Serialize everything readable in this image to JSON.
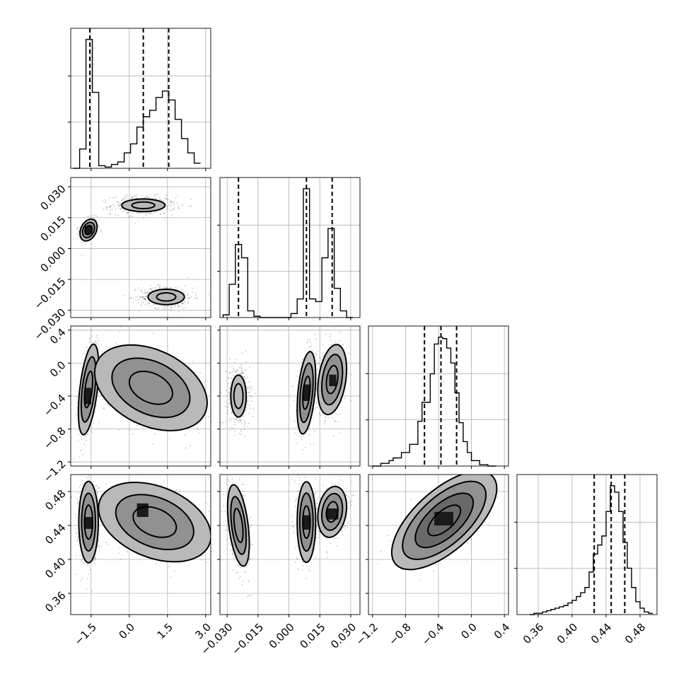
{
  "chart_data": {
    "type": "corner",
    "parameters": [
      {
        "id": "p0",
        "ticks": [
          "−1.5",
          "0.0",
          "1.5",
          "3.0"
        ],
        "tick_values": [
          -1.5,
          0.0,
          1.5,
          3.0
        ],
        "range": [
          -2.3,
          3.2
        ],
        "quantiles": [
          -1.55,
          0.55,
          1.55
        ],
        "histogram": {
          "bin_edges": [
            -2.2,
            -1.95,
            -1.7,
            -1.45,
            -1.2,
            -0.95,
            -0.7,
            -0.45,
            -0.2,
            0.05,
            0.3,
            0.55,
            0.8,
            1.05,
            1.3,
            1.55,
            1.8,
            2.05,
            2.3,
            2.55,
            2.8
          ],
          "counts": [
            0,
            0.15,
            1.0,
            0.59,
            0.02,
            0.01,
            0.03,
            0.05,
            0.12,
            0.19,
            0.32,
            0.4,
            0.45,
            0.55,
            0.6,
            0.53,
            0.38,
            0.23,
            0.12,
            0.04
          ]
        }
      },
      {
        "id": "p1",
        "ticks": [
          "−0.030",
          "−0.015",
          "0.000",
          "0.015",
          "0.030"
        ],
        "tick_values": [
          -0.03,
          -0.015,
          0.0,
          0.015,
          0.03
        ],
        "range": [
          -0.0335,
          0.0345
        ],
        "quantiles": [
          -0.0245,
          0.0085,
          0.021
        ],
        "histogram": {
          "bin_edges": [
            -0.032,
            -0.029,
            -0.026,
            -0.023,
            -0.02,
            -0.017,
            -0.014,
            -0.011,
            -0.008,
            -0.005,
            -0.002,
            0.001,
            0.004,
            0.007,
            0.01,
            0.013,
            0.016,
            0.019,
            0.022,
            0.025,
            0.028,
            0.031
          ],
          "counts": [
            0.02,
            0.25,
            0.55,
            0.45,
            0.05,
            0.01,
            0,
            0,
            0,
            0,
            0,
            0.03,
            0.14,
            0.97,
            0.14,
            0.12,
            0.45,
            0.67,
            0.22,
            0.05,
            0
          ]
        }
      },
      {
        "id": "p2",
        "ticks": [
          "−1.2",
          "−0.8",
          "−0.4",
          "0.0",
          "0.4"
        ],
        "tick_values": [
          -1.2,
          -0.8,
          -0.4,
          0.0,
          0.4
        ],
        "range": [
          -1.25,
          0.45
        ],
        "quantiles": [
          -0.57,
          -0.37,
          -0.18
        ],
        "histogram": {
          "bin_edges": [
            -1.2,
            -1.1,
            -1.0,
            -0.95,
            -0.85,
            -0.75,
            -0.65,
            -0.6,
            -0.5,
            -0.45,
            -0.4,
            -0.35,
            -0.3,
            -0.25,
            -0.2,
            -0.15,
            -0.1,
            -0.05,
            0.0,
            0.1,
            0.2,
            0.3
          ],
          "counts": [
            0,
            0.02,
            0.04,
            0.06,
            0.1,
            0.16,
            0.33,
            0.47,
            0.68,
            0.9,
            0.95,
            0.94,
            0.87,
            0.76,
            0.54,
            0.32,
            0.18,
            0.1,
            0.04,
            0.01,
            0
          ]
        }
      },
      {
        "id": "p3",
        "ticks": [
          "0.36",
          "0.40",
          "0.44",
          "0.48"
        ],
        "tick_values": [
          0.36,
          0.4,
          0.44,
          0.48
        ],
        "range": [
          0.335,
          0.5
        ],
        "quantiles": [
          0.426,
          0.446,
          0.462
        ],
        "histogram": {
          "bin_edges": [
            0.35,
            0.355,
            0.36,
            0.365,
            0.37,
            0.375,
            0.38,
            0.385,
            0.39,
            0.395,
            0.4,
            0.405,
            0.41,
            0.415,
            0.42,
            0.425,
            0.43,
            0.435,
            0.44,
            0.445,
            0.45,
            0.455,
            0.46,
            0.465,
            0.47,
            0.475,
            0.48,
            0.485,
            0.49,
            0.495
          ],
          "counts": [
            0,
            0.01,
            0.01,
            0.02,
            0.03,
            0.04,
            0.05,
            0.06,
            0.07,
            0.09,
            0.11,
            0.14,
            0.17,
            0.21,
            0.33,
            0.47,
            0.54,
            0.61,
            0.8,
            1.0,
            0.95,
            0.8,
            0.56,
            0.36,
            0.21,
            0.1,
            0.05,
            0.02,
            0.01
          ]
        }
      }
    ],
    "pairs": [
      {
        "row": 1,
        "col": 0,
        "modes": [
          {
            "cx": -1.6,
            "cy": 0.009,
            "sx": 0.14,
            "sy": 0.0022,
            "rho": 0.3,
            "levels": [
              1.0,
              1.7,
              2.4
            ],
            "dark": [
              -1.75,
              -1.45,
              0.007,
              0.011
            ]
          },
          {
            "cx": 0.55,
            "cy": 0.021,
            "sx": 0.5,
            "sy": 0.0018,
            "rho": 0.0,
            "levels": [
              0.9,
              1.7
            ]
          },
          {
            "cx": 1.45,
            "cy": -0.0235,
            "sx": 0.42,
            "sy": 0.0022,
            "rho": 0.0,
            "levels": [
              0.9,
              1.7
            ]
          }
        ]
      },
      {
        "row": 2,
        "col": 0,
        "modes": [
          {
            "cx": -1.6,
            "cy": -0.32,
            "sx": 0.16,
            "sy": 0.22,
            "rho": 0.5,
            "levels": [
              1.0,
              1.8,
              2.5
            ],
            "dark": [
              -1.75,
              -1.5,
              -0.5,
              -0.3
            ]
          },
          {
            "cx": 0.85,
            "cy": -0.3,
            "sx": 0.85,
            "sy": 0.2,
            "rho": -0.35,
            "levels": [
              1.0,
              1.8,
              2.6
            ]
          }
        ]
      },
      {
        "row": 2,
        "col": 1,
        "modes": [
          {
            "cx": -0.0245,
            "cy": -0.4,
            "sx": 0.0022,
            "sy": 0.15,
            "rho": 0.0,
            "levels": [
              1.0,
              1.7
            ]
          },
          {
            "cx": 0.0085,
            "cy": -0.36,
            "sx": 0.0018,
            "sy": 0.2,
            "rho": 0.4,
            "levels": [
              1.0,
              1.8,
              2.5
            ],
            "dark": [
              0.007,
              0.01,
              -0.46,
              -0.26
            ]
          },
          {
            "cx": 0.021,
            "cy": -0.2,
            "sx": 0.0028,
            "sy": 0.17,
            "rho": 0.3,
            "levels": [
              1.0,
              1.8,
              2.5
            ],
            "dark": [
              0.0195,
              0.023,
              -0.28,
              -0.14
            ]
          }
        ]
      },
      {
        "row": 3,
        "col": 0,
        "modes": [
          {
            "cx": -1.6,
            "cy": 0.444,
            "sx": 0.16,
            "sy": 0.02,
            "rho": 0.0,
            "levels": [
              1.0,
              1.7,
              2.4
            ],
            "dark": [
              -1.75,
              -1.45,
              0.436,
              0.45
            ]
          },
          {
            "cx": 1.0,
            "cy": 0.444,
            "sx": 0.85,
            "sy": 0.018,
            "rho": -0.35,
            "levels": [
              1.0,
              1.8,
              2.6
            ],
            "dark": [
              0.3,
              0.75,
              0.45,
              0.466
            ]
          }
        ]
      },
      {
        "row": 3,
        "col": 1,
        "modes": [
          {
            "cx": -0.0245,
            "cy": 0.44,
            "sx": 0.0022,
            "sy": 0.02,
            "rho": -0.45,
            "levels": [
              1.0,
              1.7,
              2.4
            ]
          },
          {
            "cx": 0.0085,
            "cy": 0.444,
            "sx": 0.0018,
            "sy": 0.019,
            "rho": 0.0,
            "levels": [
              1.0,
              1.8,
              2.5
            ],
            "dark": [
              0.007,
              0.01,
              0.435,
              0.452
            ]
          },
          {
            "cx": 0.021,
            "cy": 0.456,
            "sx": 0.0028,
            "sy": 0.012,
            "rho": 0.2,
            "levels": [
              1.0,
              1.8,
              2.5
            ],
            "dark": [
              0.0185,
              0.024,
              0.447,
              0.46
            ]
          }
        ]
      },
      {
        "row": 3,
        "col": 2,
        "modes": [
          {
            "cx": -0.33,
            "cy": 0.446,
            "sx": 0.22,
            "sy": 0.02,
            "rho": 0.65,
            "levels": [
              0.9,
              1.6,
              2.3,
              2.9
            ],
            "dark": [
              -0.45,
              -0.22,
              0.44,
              0.456
            ]
          }
        ]
      }
    ]
  }
}
